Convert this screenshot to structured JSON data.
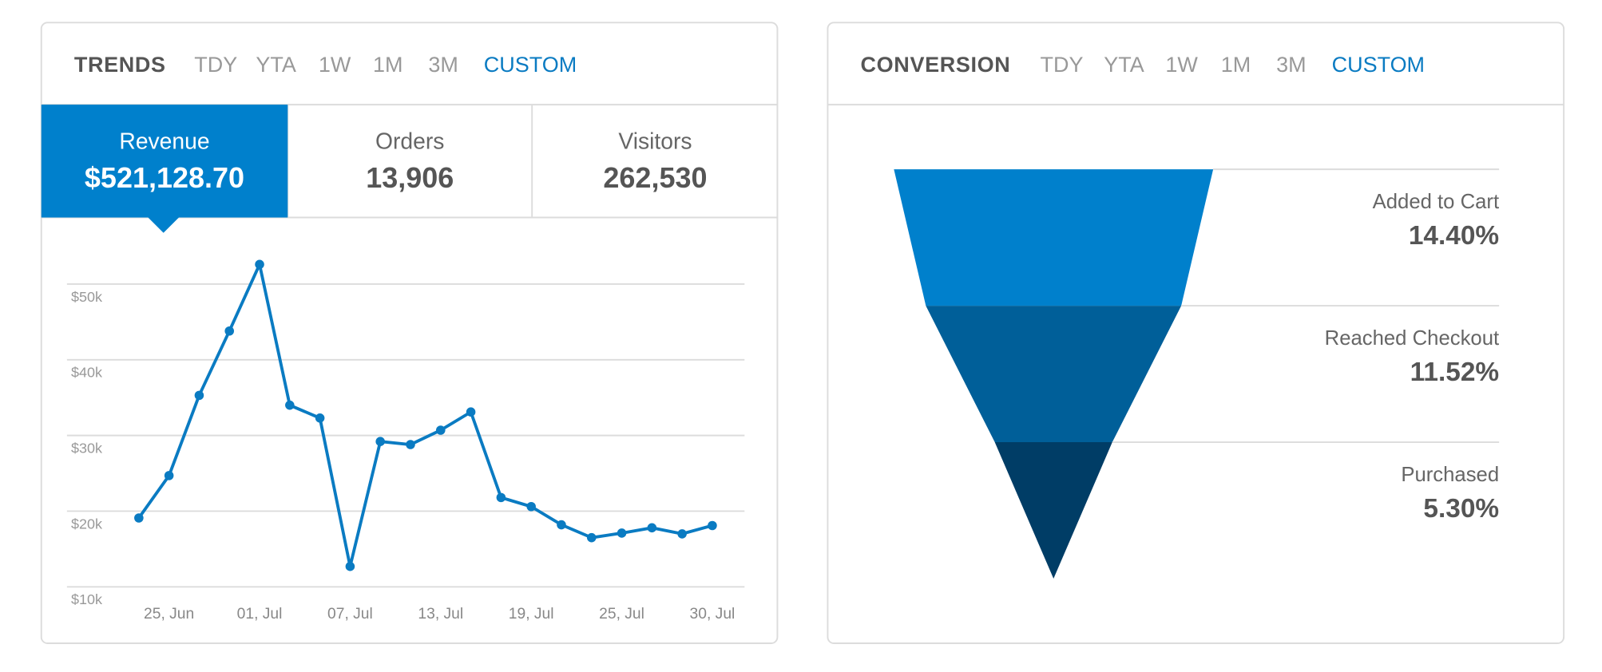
{
  "trends": {
    "title": "TRENDS",
    "tabs": [
      "TDY",
      "YTA",
      "1W",
      "1M",
      "3M",
      "CUSTOM"
    ],
    "stats": [
      {
        "label": "Revenue",
        "value": "$521,128.70"
      },
      {
        "label": "Orders",
        "value": "13,906"
      },
      {
        "label": "Visitors",
        "value": "262,530"
      }
    ]
  },
  "conversion": {
    "title": "CONVERSION",
    "tabs": [
      "TDY",
      "YTA",
      "1W",
      "1M",
      "3M",
      "CUSTOM"
    ]
  },
  "chart_data": [
    {
      "type": "line",
      "color": "#0a7bc2",
      "categories": [
        null,
        "25, Jun",
        null,
        null,
        "01, Jul",
        null,
        null,
        "07, Jul",
        null,
        null,
        "13, Jul",
        null,
        null,
        "19, Jul",
        null,
        null,
        "25, Jul",
        null,
        null,
        "30, Jul"
      ],
      "values": [
        19100,
        24700,
        35300,
        43800,
        52600,
        34000,
        32300,
        12700,
        29200,
        28800,
        30700,
        33100,
        21800,
        20600,
        18200,
        16500,
        17100,
        17800,
        17000,
        18100
      ],
      "ylim": [
        10000,
        55000
      ],
      "yticks": [
        {
          "value": 10000,
          "label": "$10k"
        },
        {
          "value": 20000,
          "label": "$20k"
        },
        {
          "value": 30000,
          "label": "$30k"
        },
        {
          "value": 40000,
          "label": "$40k"
        },
        {
          "value": 50000,
          "label": "$50k"
        }
      ],
      "grid": true
    },
    {
      "type": "funnel",
      "categories": [
        "Added to Cart",
        "Reached Checkout",
        "Purchased"
      ],
      "values": [
        14.4,
        11.52,
        5.3
      ],
      "value_labels": [
        "14.40%",
        "11.52%",
        "5.30%"
      ],
      "colors": [
        "#0080cc",
        "#005f99",
        "#003d66"
      ]
    }
  ]
}
